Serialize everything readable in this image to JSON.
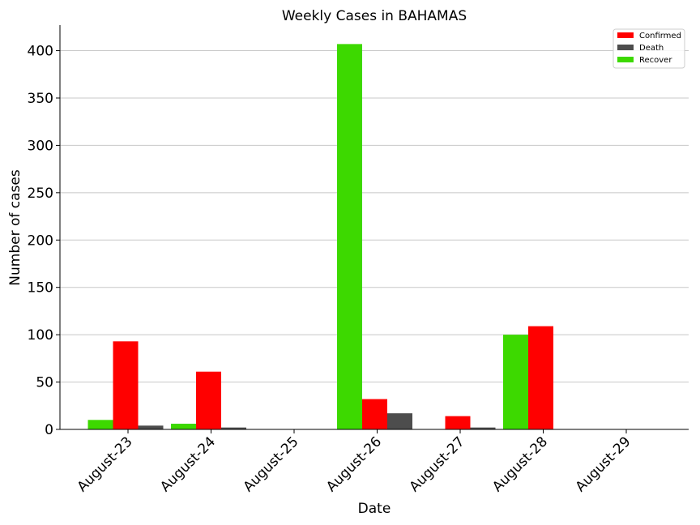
{
  "chart_data": {
    "type": "bar",
    "title": "Weekly Cases in BAHAMAS",
    "xlabel": "Date",
    "ylabel": "Number of cases",
    "categories": [
      "August-23",
      "August-24",
      "August-25",
      "August-26",
      "August-27",
      "August-28",
      "August-29"
    ],
    "series": [
      {
        "name": "Recover",
        "color": "#3dd900",
        "values": [
          10,
          6,
          0,
          407,
          0,
          100,
          0
        ]
      },
      {
        "name": "Confirmed",
        "color": "#ff0000",
        "values": [
          93,
          61,
          0,
          32,
          14,
          109,
          0
        ]
      },
      {
        "name": "Death",
        "color": "#4d4d4d",
        "values": [
          4,
          2,
          0,
          17,
          2,
          0,
          0
        ]
      }
    ],
    "legend_order": [
      "Confirmed",
      "Death",
      "Recover"
    ],
    "yticks": [
      0,
      50,
      100,
      150,
      200,
      250,
      300,
      350,
      400
    ],
    "ylim": [
      0,
      427
    ],
    "grid": "horizontal",
    "legend_position": "top-right"
  }
}
